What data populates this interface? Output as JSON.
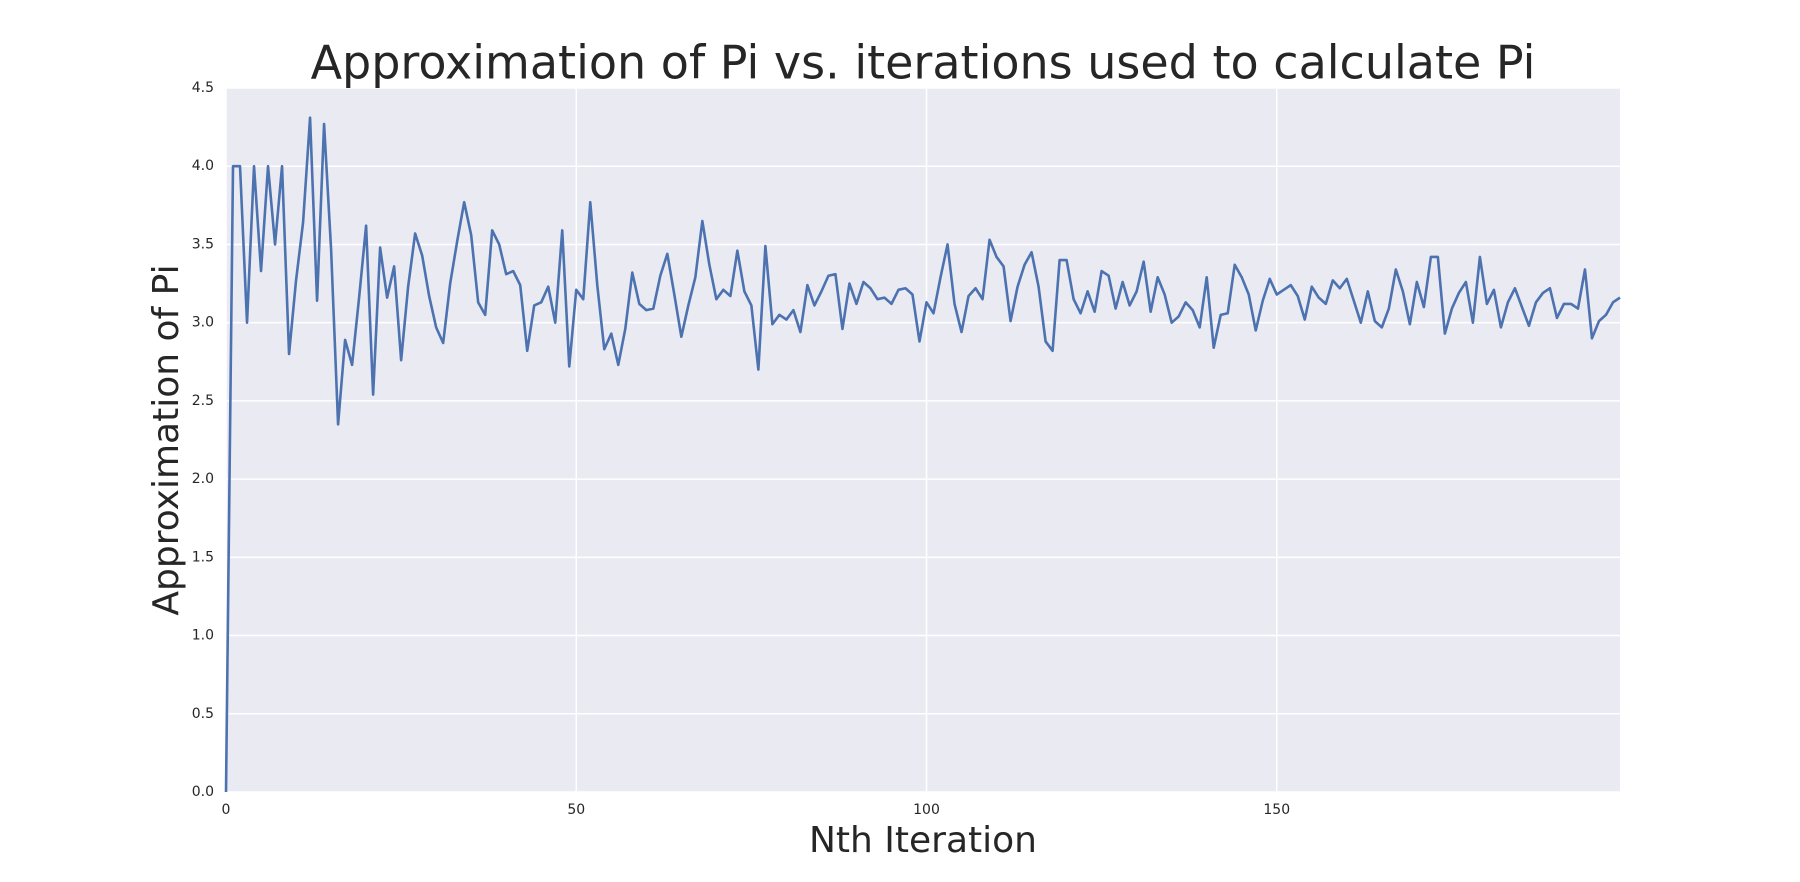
{
  "chart_data": {
    "type": "line",
    "title": "Approximation of Pi vs. iterations used to calculate Pi",
    "x_label": "Nth Iteration",
    "y_label": "Approximation of Pi",
    "x": [
      0,
      1,
      2,
      3,
      4,
      5,
      6,
      7,
      8,
      9,
      10,
      11,
      12,
      13,
      14,
      15,
      16,
      17,
      18,
      19,
      20,
      21,
      22,
      23,
      24,
      25,
      26,
      27,
      28,
      29,
      30,
      31,
      32,
      33,
      34,
      35,
      36,
      37,
      38,
      39,
      40,
      41,
      42,
      43,
      44,
      45,
      46,
      47,
      48,
      49,
      50,
      51,
      52,
      53,
      54,
      55,
      56,
      57,
      58,
      59,
      60,
      61,
      62,
      63,
      64,
      65,
      66,
      67,
      68,
      69,
      70,
      71,
      72,
      73,
      74,
      75,
      76,
      77,
      78,
      79,
      80,
      81,
      82,
      83,
      84,
      85,
      86,
      87,
      88,
      89,
      90,
      91,
      92,
      93,
      94,
      95,
      96,
      97,
      98,
      99,
      100,
      101,
      102,
      103,
      104,
      105,
      106,
      107,
      108,
      109,
      110,
      111,
      112,
      113,
      114,
      115,
      116,
      117,
      118,
      119,
      120,
      121,
      122,
      123,
      124,
      125,
      126,
      127,
      128,
      129,
      130,
      131,
      132,
      133,
      134,
      135,
      136,
      137,
      138,
      139,
      140,
      141,
      142,
      143,
      144,
      145,
      146,
      147,
      148,
      149,
      150,
      151,
      152,
      153,
      154,
      155,
      156,
      157,
      158,
      159,
      160,
      161,
      162,
      163,
      164,
      165,
      166,
      167,
      168,
      169,
      170,
      171,
      172,
      173,
      174,
      175,
      176,
      177,
      178,
      179,
      180,
      181,
      182,
      183,
      184,
      185,
      186,
      187,
      188,
      189,
      190,
      191,
      192,
      193,
      194,
      195,
      196,
      197,
      198,
      199
    ],
    "series": [
      {
        "name": "Approximation of Pi",
        "color": "#4c72b0",
        "values": [
          0,
          4.0,
          4.0,
          3.0,
          4.0,
          3.33,
          4.0,
          3.5,
          4.0,
          2.8,
          3.27,
          3.64,
          4.31,
          3.14,
          4.27,
          3.47,
          2.35,
          2.89,
          2.73,
          3.16,
          3.62,
          2.54,
          3.48,
          3.16,
          3.36,
          2.76,
          3.23,
          3.57,
          3.43,
          3.17,
          2.97,
          2.87,
          3.25,
          3.52,
          3.77,
          3.56,
          3.13,
          3.05,
          3.59,
          3.5,
          3.31,
          3.33,
          3.24,
          2.82,
          3.11,
          3.13,
          3.23,
          3.0,
          3.59,
          2.72,
          3.21,
          3.15,
          3.77,
          3.24,
          2.83,
          2.93,
          2.73,
          2.96,
          3.32,
          3.12,
          3.08,
          3.09,
          3.3,
          3.44,
          3.18,
          2.91,
          3.11,
          3.29,
          3.65,
          3.37,
          3.15,
          3.21,
          3.17,
          3.46,
          3.2,
          3.11,
          2.7,
          3.49,
          2.99,
          3.05,
          3.02,
          3.08,
          2.94,
          3.24,
          3.11,
          3.2,
          3.3,
          3.31,
          2.96,
          3.25,
          3.12,
          3.26,
          3.22,
          3.15,
          3.16,
          3.12,
          3.21,
          3.22,
          3.18,
          2.88,
          3.13,
          3.06,
          3.29,
          3.5,
          3.12,
          2.94,
          3.17,
          3.22,
          3.15,
          3.53,
          3.42,
          3.36,
          3.01,
          3.23,
          3.37,
          3.45,
          3.23,
          2.88,
          2.82,
          3.4,
          3.4,
          3.15,
          3.06,
          3.2,
          3.07,
          3.33,
          3.3,
          3.09,
          3.26,
          3.11,
          3.2,
          3.39,
          3.07,
          3.29,
          3.18,
          3.0,
          3.04,
          3.13,
          3.08,
          2.97,
          3.29,
          2.84,
          3.05,
          3.06,
          3.37,
          3.29,
          3.18,
          2.95,
          3.14,
          3.28,
          3.18,
          3.21,
          3.24,
          3.17,
          3.02,
          3.23,
          3.16,
          3.12,
          3.27,
          3.22,
          3.28,
          3.14,
          3.0,
          3.2,
          3.01,
          2.97,
          3.09,
          3.34,
          3.2,
          2.99,
          3.26,
          3.1,
          3.42,
          3.42,
          2.93,
          3.09,
          3.19,
          3.26,
          3.0,
          3.42,
          3.12,
          3.21,
          2.97,
          3.13,
          3.22,
          3.1,
          2.98,
          3.13,
          3.19,
          3.22,
          3.03,
          3.12,
          3.12,
          3.09,
          3.34,
          2.9,
          3.01,
          3.05,
          3.13,
          3.16
        ]
      }
    ],
    "xlim": [
      0,
      199
    ],
    "ylim": [
      0,
      4.5
    ],
    "xticks": [
      0,
      50,
      100,
      150
    ],
    "yticks": [
      {
        "value": 0,
        "label": "0.0"
      },
      {
        "value": 0.5,
        "label": "0.5"
      },
      {
        "value": 1,
        "label": "1.0"
      },
      {
        "value": 1.5,
        "label": "1.5"
      },
      {
        "value": 2,
        "label": "2.0"
      },
      {
        "value": 2.5,
        "label": "2.5"
      },
      {
        "value": 3,
        "label": "3.0"
      },
      {
        "value": 3.5,
        "label": "3.5"
      },
      {
        "value": 4,
        "label": "4.0"
      },
      {
        "value": 4.5,
        "label": "4.5"
      }
    ],
    "grid": true
  }
}
